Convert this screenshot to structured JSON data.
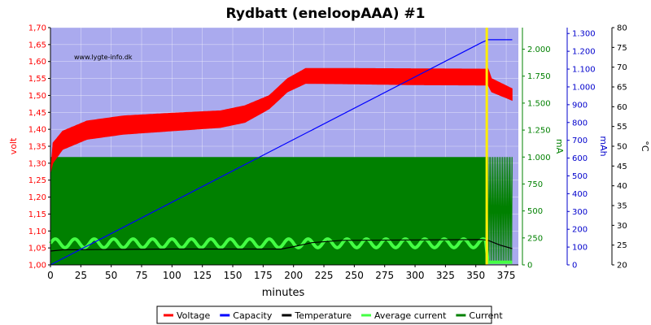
{
  "chart_data": {
    "type": "line",
    "title": "Rydbatt (eneloopAAA) #1",
    "watermark": "www.lygte-info.dk",
    "xlabel": "minutes",
    "xlim": [
      0,
      385
    ],
    "xticks": [
      0,
      25,
      50,
      75,
      100,
      125,
      150,
      175,
      200,
      225,
      250,
      275,
      300,
      325,
      350,
      375
    ],
    "grid": true,
    "background": "#aaaaee",
    "axes": {
      "volt": {
        "label": "volt",
        "color": "#ff0000",
        "min": 1.0,
        "max": 1.7,
        "ticks": [
          "1,00",
          "1,05",
          "1,10",
          "1,15",
          "1,20",
          "1,25",
          "1,30",
          "1,35",
          "1,40",
          "1,45",
          "1,50",
          "1,55",
          "1,60",
          "1,65",
          "1,70"
        ]
      },
      "mA": {
        "label": "mA",
        "color": "#008000",
        "min": 0,
        "max": 2200,
        "ticks": [
          "0",
          "250",
          "500",
          "750",
          "1.000",
          "1.250",
          "1.500",
          "1.750",
          "2.000"
        ]
      },
      "mAh": {
        "label": "mAh",
        "color": "#0000cc",
        "min": 0,
        "max": 1333,
        "ticks": [
          "0",
          "100",
          "200",
          "300",
          "400",
          "500",
          "600",
          "700",
          "800",
          "900",
          "1.000",
          "1.100",
          "1.200",
          "1.300"
        ]
      },
      "temp": {
        "label": "°C",
        "color": "#000000",
        "min": 20,
        "max": 80,
        "ticks": [
          "20",
          "25",
          "30",
          "35",
          "40",
          "45",
          "50",
          "55",
          "60",
          "65",
          "70",
          "75",
          "80"
        ]
      }
    },
    "marker_minute": 359,
    "marker_color": "#ffee00",
    "series": [
      {
        "name": "Voltage",
        "axis": "volt",
        "color": "#ff0000",
        "upper": [
          [
            0,
            1.27
          ],
          [
            2,
            1.36
          ],
          [
            10,
            1.395
          ],
          [
            30,
            1.425
          ],
          [
            60,
            1.44
          ],
          [
            100,
            1.448
          ],
          [
            140,
            1.455
          ],
          [
            160,
            1.47
          ],
          [
            180,
            1.5
          ],
          [
            195,
            1.55
          ],
          [
            210,
            1.58
          ],
          [
            240,
            1.58
          ],
          [
            300,
            1.579
          ],
          [
            359,
            1.578
          ],
          [
            360,
            1.58
          ],
          [
            363,
            1.55
          ],
          [
            380,
            1.52
          ]
        ],
        "lower": [
          [
            0,
            1.27
          ],
          [
            2,
            1.3
          ],
          [
            10,
            1.34
          ],
          [
            30,
            1.37
          ],
          [
            60,
            1.385
          ],
          [
            100,
            1.395
          ],
          [
            140,
            1.405
          ],
          [
            160,
            1.42
          ],
          [
            180,
            1.46
          ],
          [
            195,
            1.51
          ],
          [
            210,
            1.535
          ],
          [
            240,
            1.534
          ],
          [
            300,
            1.531
          ],
          [
            359,
            1.53
          ],
          [
            360,
            1.53
          ],
          [
            363,
            1.51
          ],
          [
            380,
            1.485
          ]
        ]
      },
      {
        "name": "Capacity",
        "axis": "mAh",
        "color": "#0000ff",
        "points": [
          [
            0,
            0
          ],
          [
            355,
            1250
          ],
          [
            360,
            1265
          ],
          [
            380,
            1265
          ]
        ]
      },
      {
        "name": "Temperature",
        "axis": "temp",
        "color": "#000000",
        "points": [
          [
            0,
            23.5
          ],
          [
            10,
            23.8
          ],
          [
            50,
            23.9
          ],
          [
            100,
            24.0
          ],
          [
            150,
            24.0
          ],
          [
            190,
            24.0
          ],
          [
            200,
            24.6
          ],
          [
            215,
            25.6
          ],
          [
            240,
            26.2
          ],
          [
            300,
            26.3
          ],
          [
            355,
            26.4
          ],
          [
            360,
            26.2
          ],
          [
            370,
            25.0
          ],
          [
            380,
            24.1
          ]
        ]
      },
      {
        "name": "Average current",
        "axis": "mA",
        "color": "#44ff44",
        "center": 200,
        "amplitude": 40,
        "period": 16,
        "end_minute": 358,
        "tail_value": 25
      },
      {
        "name": "Current",
        "axis": "mA",
        "color": "#008000",
        "level": 1000,
        "end_minute": 358,
        "tail_end": 380
      }
    ],
    "legend": {
      "position": "bottom",
      "entries": [
        {
          "label": "Voltage",
          "color": "#ff0000"
        },
        {
          "label": "Capacity",
          "color": "#0000ff"
        },
        {
          "label": "Temperature",
          "color": "#000000"
        },
        {
          "label": "Average current",
          "color": "#44ff44"
        },
        {
          "label": "Current",
          "color": "#008000"
        }
      ]
    }
  }
}
